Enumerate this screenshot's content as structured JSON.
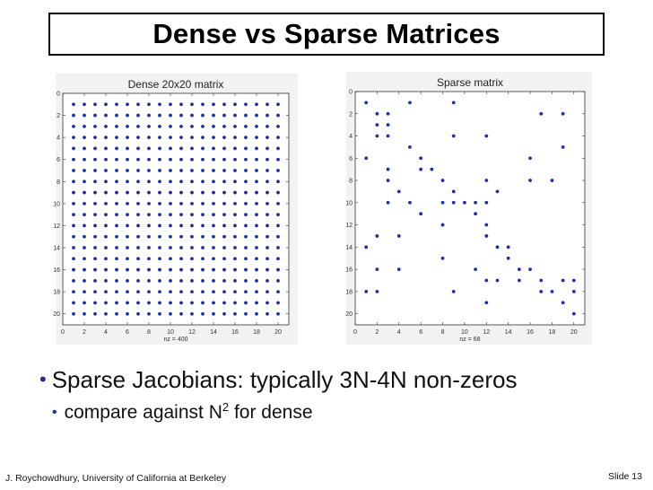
{
  "slide": {
    "title": "Dense vs Sparse Matrices",
    "footer_author": "J. Roychowdhury, University of California at Berkeley",
    "slide_number": "Slide 13"
  },
  "bullets": {
    "main": "Sparse Jacobians: typically 3N-4N non-zeros",
    "sub_before": "compare against N",
    "sub_sup": "2",
    "sub_after": " for dense"
  },
  "chart_data": [
    {
      "type": "scatter",
      "title": "Dense 20x20 matrix",
      "xlabel": "nz = 400",
      "xlim": [
        0,
        21
      ],
      "ylim": [
        0,
        21
      ],
      "y_reversed": true,
      "xticks": [
        0,
        2,
        4,
        6,
        8,
        10,
        12,
        14,
        16,
        18,
        20
      ],
      "yticks": [
        0,
        2,
        4,
        6,
        8,
        10,
        12,
        14,
        16,
        18,
        20
      ],
      "marker_color": "#1f2fa8",
      "pattern": "all entries (i,j) for i,j in 1..20"
    },
    {
      "type": "scatter",
      "title": "Sparse matrix",
      "xlabel": "nz = 68",
      "xlim": [
        0,
        21
      ],
      "ylim": [
        0,
        21
      ],
      "y_reversed": true,
      "xticks": [
        0,
        2,
        4,
        6,
        8,
        10,
        12,
        14,
        16,
        18,
        20
      ],
      "yticks": [
        0,
        2,
        4,
        6,
        8,
        10,
        12,
        14,
        16,
        18,
        20
      ],
      "marker_color": "#1f2fa8",
      "points": [
        [
          1,
          1
        ],
        [
          5,
          1
        ],
        [
          9,
          1
        ],
        [
          2,
          2
        ],
        [
          3,
          2
        ],
        [
          17,
          2
        ],
        [
          19,
          2
        ],
        [
          2,
          3
        ],
        [
          3,
          3
        ],
        [
          2,
          4
        ],
        [
          3,
          4
        ],
        [
          9,
          4
        ],
        [
          12,
          4
        ],
        [
          5,
          5
        ],
        [
          19,
          5
        ],
        [
          1,
          6
        ],
        [
          6,
          6
        ],
        [
          16,
          6
        ],
        [
          3,
          7
        ],
        [
          6,
          7
        ],
        [
          7,
          7
        ],
        [
          3,
          8
        ],
        [
          8,
          8
        ],
        [
          12,
          8
        ],
        [
          16,
          8
        ],
        [
          18,
          8
        ],
        [
          4,
          9
        ],
        [
          9,
          9
        ],
        [
          13,
          9
        ],
        [
          3,
          10
        ],
        [
          5,
          10
        ],
        [
          8,
          10
        ],
        [
          9,
          10
        ],
        [
          10,
          10
        ],
        [
          11,
          10
        ],
        [
          12,
          10
        ],
        [
          6,
          11
        ],
        [
          11,
          11
        ],
        [
          2,
          13
        ],
        [
          12,
          13
        ],
        [
          8,
          12
        ],
        [
          12,
          12
        ],
        [
          1,
          14
        ],
        [
          13,
          14
        ],
        [
          14,
          14
        ],
        [
          4,
          13
        ],
        [
          14,
          15
        ],
        [
          8,
          15
        ],
        [
          2,
          16
        ],
        [
          4,
          16
        ],
        [
          11,
          16
        ],
        [
          15,
          16
        ],
        [
          12,
          17
        ],
        [
          13,
          17
        ],
        [
          15,
          17
        ],
        [
          17,
          17
        ],
        [
          20,
          17
        ],
        [
          1,
          18
        ],
        [
          2,
          18
        ],
        [
          9,
          18
        ],
        [
          17,
          18
        ],
        [
          18,
          18
        ],
        [
          20,
          18
        ],
        [
          12,
          19
        ],
        [
          19,
          19
        ],
        [
          20,
          20
        ],
        [
          19,
          17
        ],
        [
          16,
          16
        ]
      ]
    }
  ]
}
